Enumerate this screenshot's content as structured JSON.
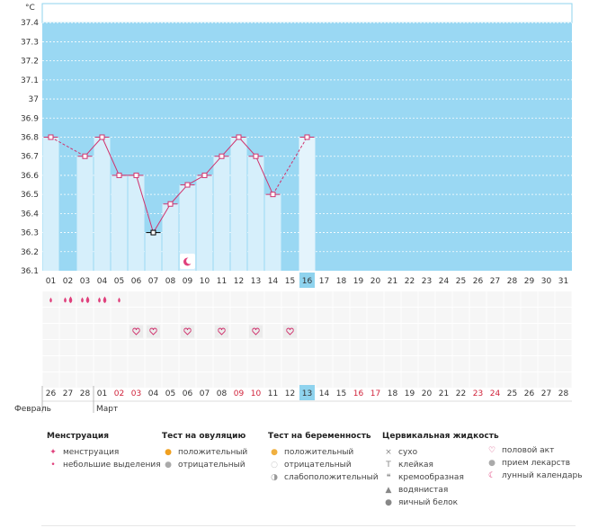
{
  "chart_data": {
    "type": "bar",
    "yunit": "°C",
    "ylim": [
      36.1,
      37.5
    ],
    "yticks": [
      "36.1",
      "36.2",
      "36.3",
      "36.4",
      "36.5",
      "36.6",
      "36.7",
      "36.8",
      "36.9",
      "37",
      "37.1",
      "37.2",
      "37.3",
      "37.4"
    ],
    "cycle_days": [
      "01",
      "02",
      "03",
      "04",
      "05",
      "06",
      "07",
      "08",
      "09",
      "10",
      "11",
      "12",
      "13",
      "14",
      "15",
      "16",
      "17",
      "18",
      "19",
      "20",
      "21",
      "22",
      "23",
      "24",
      "25",
      "26",
      "27",
      "28",
      "29",
      "30",
      "31"
    ],
    "current_day": "16",
    "temperatures": [
      36.8,
      null,
      36.7,
      36.8,
      36.6,
      36.6,
      36.3,
      36.45,
      36.55,
      36.6,
      36.7,
      36.8,
      36.7,
      36.5,
      null,
      36.8
    ],
    "interpolated_days": [
      2,
      15
    ],
    "lowest_day": 7,
    "moon_marker_day": 9,
    "menstruation": [
      {
        "day": 1,
        "count": 1
      },
      {
        "day": 2,
        "count": 2
      },
      {
        "day": 3,
        "count": 2
      },
      {
        "day": 4,
        "count": 2
      },
      {
        "day": 5,
        "count": 1
      }
    ],
    "sex_days": [
      6,
      7,
      9,
      11,
      13,
      15
    ],
    "calendar_dates": [
      {
        "label": "26",
        "red": false
      },
      {
        "label": "27",
        "red": false
      },
      {
        "label": "28",
        "red": false
      },
      {
        "label": "01",
        "red": false
      },
      {
        "label": "02",
        "red": true
      },
      {
        "label": "03",
        "red": true
      },
      {
        "label": "04",
        "red": false
      },
      {
        "label": "05",
        "red": false
      },
      {
        "label": "06",
        "red": false
      },
      {
        "label": "07",
        "red": false
      },
      {
        "label": "08",
        "red": false
      },
      {
        "label": "09",
        "red": true
      },
      {
        "label": "10",
        "red": true
      },
      {
        "label": "11",
        "red": false
      },
      {
        "label": "12",
        "red": false
      },
      {
        "label": "13",
        "red": false
      },
      {
        "label": "14",
        "red": false
      },
      {
        "label": "15",
        "red": false
      },
      {
        "label": "16",
        "red": true
      },
      {
        "label": "17",
        "red": true
      },
      {
        "label": "18",
        "red": false
      },
      {
        "label": "19",
        "red": false
      },
      {
        "label": "20",
        "red": false
      },
      {
        "label": "21",
        "red": false
      },
      {
        "label": "22",
        "red": false
      },
      {
        "label": "23",
        "red": true
      },
      {
        "label": "24",
        "red": true
      },
      {
        "label": "25",
        "red": false
      },
      {
        "label": "26",
        "red": false
      },
      {
        "label": "27",
        "red": false
      },
      {
        "label": "28",
        "red": false
      }
    ],
    "months": [
      {
        "label": "Февраль",
        "start_index": 0
      },
      {
        "label": "Март",
        "start_index": 3
      }
    ]
  },
  "colors": {
    "background": "#9ad8f3",
    "bar": "#d6effb",
    "bar_current": "#e4f4fc",
    "line": "#d0336e",
    "highlight": "#8fd3ee",
    "red_text": "#d0233b"
  },
  "legend": {
    "menstruation": {
      "title": "Менструация",
      "items": [
        {
          "icon": "drop-pair-icon",
          "label": "менструация"
        },
        {
          "icon": "drop-small-icon",
          "label": "небольшие выделения"
        }
      ]
    },
    "ovulation": {
      "title": "Тест на овуляцию",
      "items": [
        {
          "icon": "sun-positive-icon",
          "label": "положительный"
        },
        {
          "icon": "circle-negative-icon",
          "label": "отрицательный"
        }
      ]
    },
    "pregnancy": {
      "title": "Тест на беременность",
      "items": [
        {
          "icon": "heart-face-positive-icon",
          "label": "положительный"
        },
        {
          "icon": "heart-face-negative-icon",
          "label": "отрицательный"
        },
        {
          "icon": "heart-face-weak-icon",
          "label": "слабоположительный"
        }
      ]
    },
    "cervical": {
      "title": "Цервикальная жидкость",
      "items": [
        {
          "icon": "cross-icon",
          "label": "сухо"
        },
        {
          "icon": "t-icon",
          "label": "клейкая"
        },
        {
          "icon": "cream-icon",
          "label": "кремообразная"
        },
        {
          "icon": "water-drop-icon",
          "label": "водянистая"
        },
        {
          "icon": "egg-white-icon",
          "label": "яичный белок"
        }
      ]
    },
    "other": {
      "items": [
        {
          "icon": "heart-icon",
          "label": "половой акт"
        },
        {
          "icon": "pill-icon",
          "label": "прием лекарств"
        },
        {
          "icon": "moon-icon",
          "label": "лунный календарь"
        }
      ]
    }
  }
}
